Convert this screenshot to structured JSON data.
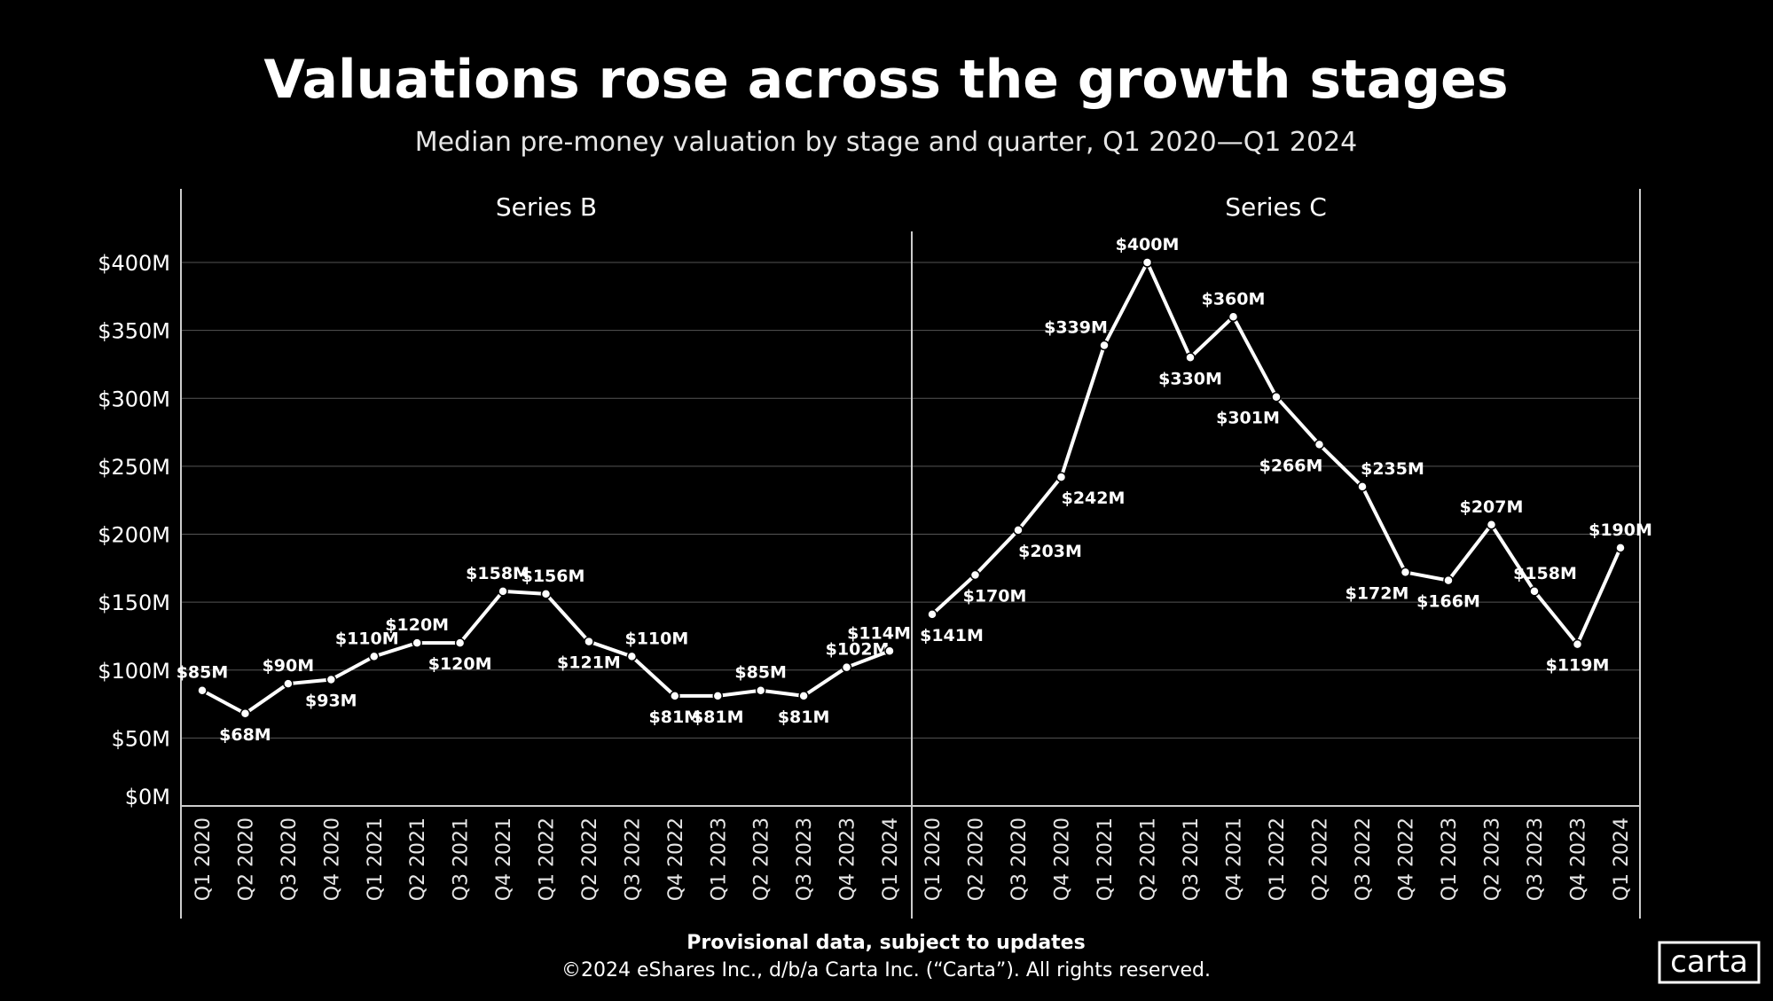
{
  "chart_data": {
    "type": "line",
    "title": "Valuations rose across the growth stages",
    "subtitle": "Median pre-money valuation by stage and quarter, Q1 2020—Q1 2024",
    "ylim": [
      0,
      400
    ],
    "yticks": [
      0,
      50,
      100,
      150,
      200,
      250,
      300,
      350,
      400
    ],
    "ytick_labels": [
      "$0M",
      "$50M",
      "$100M",
      "$150M",
      "$200M",
      "$250M",
      "$300M",
      "$350M",
      "$400M"
    ],
    "grid": true,
    "categories": [
      "Q1 2020",
      "Q2 2020",
      "Q3 2020",
      "Q4 2020",
      "Q1 2021",
      "Q2 2021",
      "Q3 2021",
      "Q4 2021",
      "Q1 2022",
      "Q2 2022",
      "Q3 2022",
      "Q4 2022",
      "Q1 2023",
      "Q2 2023",
      "Q3 2023",
      "Q4 2023",
      "Q1 2024"
    ],
    "panels": [
      {
        "name": "Series B",
        "values": [
          85,
          68,
          90,
          93,
          110,
          120,
          120,
          158,
          156,
          121,
          110,
          81,
          81,
          85,
          81,
          102,
          114
        ]
      },
      {
        "name": "Series C",
        "values": [
          141,
          170,
          203,
          242,
          339,
          400,
          330,
          360,
          301,
          266,
          235,
          172,
          166,
          207,
          158,
          119,
          190
        ]
      }
    ],
    "line_color": "#ffffff",
    "background": "#000000"
  },
  "footer": {
    "note": "Provisional data, subject to updates",
    "copyright": "©2024 eShares Inc., d/b/a Carta Inc. (“Carta”). All rights reserved."
  },
  "logo": {
    "text": "carta"
  }
}
